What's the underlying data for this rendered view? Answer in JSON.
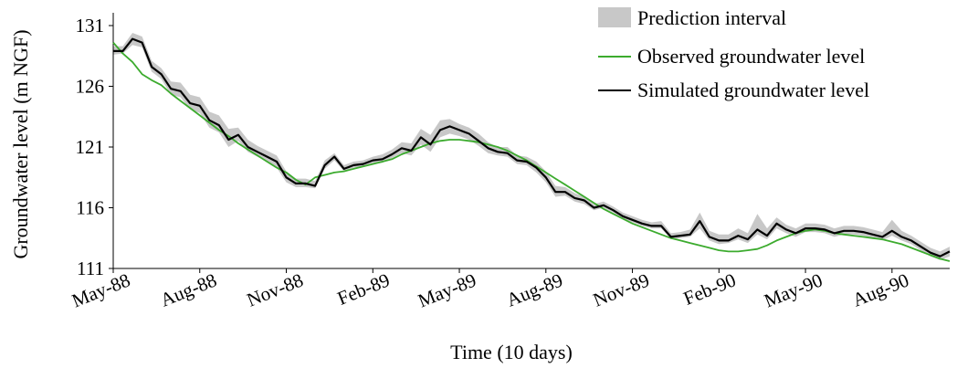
{
  "chart_data": {
    "type": "line",
    "xlabel": "Time (10 days)",
    "ylabel": "Groundwater level (m NGF)",
    "ylim": [
      111,
      131
    ],
    "yticks": [
      111,
      116,
      121,
      126,
      131
    ],
    "xticks": [
      "May-88",
      "Aug-88",
      "Nov-88",
      "Feb-89",
      "May-89",
      "Aug-89",
      "Nov-89",
      "Feb-90",
      "May-90",
      "Aug-90"
    ],
    "xtick_index": [
      0,
      9,
      18,
      27,
      36,
      45,
      54,
      63,
      72,
      81
    ],
    "legend_position": "top-right",
    "grid": false,
    "colors": {
      "band": "#c8c8c8",
      "observed": "#3cab2e",
      "simulated": "#000000"
    },
    "series": [
      {
        "name": "Observed groundwater level",
        "values": [
          129.6,
          128.7,
          128.0,
          127.0,
          126.5,
          126.1,
          125.4,
          124.8,
          124.2,
          123.6,
          123.0,
          122.4,
          121.9,
          121.3,
          120.8,
          120.3,
          119.8,
          119.3,
          118.9,
          118.3,
          117.9,
          118.5,
          118.7,
          118.9,
          119.0,
          119.2,
          119.4,
          119.6,
          119.8,
          120.0,
          120.4,
          120.7,
          121.0,
          121.3,
          121.5,
          121.6,
          121.6,
          121.5,
          121.4,
          121.2,
          121.0,
          120.7,
          120.3,
          119.9,
          119.4,
          118.9,
          118.4,
          117.9,
          117.4,
          116.9,
          116.4,
          115.9,
          115.5,
          115.1,
          114.7,
          114.4,
          114.1,
          113.8,
          113.5,
          113.3,
          113.1,
          112.9,
          112.7,
          112.5,
          112.4,
          112.4,
          112.5,
          112.6,
          112.9,
          113.3,
          113.6,
          113.9,
          114.1,
          114.2,
          114.1,
          113.9,
          113.8,
          113.7,
          113.6,
          113.5,
          113.4,
          113.2,
          113.0,
          112.7,
          112.4,
          112.1,
          111.8,
          111.6
        ]
      },
      {
        "name": "Simulated groundwater level",
        "values": [
          128.9,
          128.9,
          129.9,
          129.6,
          127.6,
          127.0,
          125.8,
          125.6,
          124.6,
          124.4,
          123.2,
          122.8,
          121.6,
          122.0,
          121.0,
          120.6,
          120.2,
          119.8,
          118.5,
          118.0,
          118.0,
          117.8,
          119.5,
          120.2,
          119.2,
          119.5,
          119.6,
          119.9,
          120.0,
          120.4,
          120.9,
          120.7,
          121.8,
          121.2,
          122.4,
          122.7,
          122.4,
          122.1,
          121.5,
          120.9,
          120.6,
          120.5,
          119.9,
          119.8,
          119.3,
          118.5,
          117.3,
          117.3,
          116.8,
          116.6,
          116.0,
          116.2,
          115.8,
          115.3,
          115.0,
          114.7,
          114.5,
          114.5,
          113.6,
          113.7,
          113.8,
          114.9,
          113.6,
          113.3,
          113.3,
          113.7,
          113.4,
          114.2,
          113.7,
          114.7,
          114.2,
          113.9,
          114.3,
          114.3,
          114.2,
          113.9,
          114.1,
          114.1,
          114.0,
          113.8,
          113.6,
          114.1,
          113.6,
          113.3,
          112.8,
          112.3,
          112.0,
          112.4
        ]
      }
    ],
    "band": {
      "name": "Prediction interval",
      "lower": [
        128.6,
        128.7,
        129.4,
        129.2,
        127.2,
        126.6,
        125.3,
        125.1,
        124.1,
        123.8,
        122.6,
        122.2,
        121.0,
        121.5,
        120.6,
        120.2,
        119.8,
        119.3,
        118.1,
        117.7,
        117.7,
        117.6,
        119.2,
        119.9,
        119.0,
        119.3,
        119.4,
        119.6,
        119.7,
        120.1,
        120.5,
        120.3,
        121.2,
        120.6,
        121.8,
        122.1,
        121.9,
        121.6,
        121.1,
        120.5,
        120.3,
        120.2,
        119.6,
        119.5,
        118.9,
        118.1,
        116.9,
        117.0,
        116.5,
        116.3,
        115.8,
        116.0,
        115.6,
        115.1,
        114.8,
        114.5,
        114.3,
        114.3,
        113.4,
        113.5,
        113.6,
        114.3,
        113.3,
        113.0,
        113.1,
        113.4,
        113.1,
        113.8,
        113.4,
        114.3,
        113.9,
        113.6,
        114.0,
        114.0,
        113.9,
        113.6,
        113.8,
        113.8,
        113.7,
        113.5,
        113.3,
        113.7,
        113.3,
        113.0,
        112.5,
        112.0,
        111.7,
        112.0
      ],
      "upper": [
        129.3,
        129.3,
        130.4,
        130.1,
        128.1,
        127.5,
        126.4,
        126.3,
        125.3,
        125.1,
        123.9,
        123.6,
        122.5,
        122.6,
        121.6,
        121.1,
        120.7,
        120.3,
        119.0,
        118.4,
        118.4,
        118.2,
        119.9,
        120.5,
        119.5,
        119.8,
        119.9,
        120.2,
        120.4,
        120.8,
        121.4,
        121.3,
        122.5,
        122.0,
        123.2,
        123.3,
        122.9,
        122.6,
        122.1,
        121.4,
        121.0,
        121.0,
        120.3,
        120.2,
        119.8,
        119.0,
        117.8,
        117.7,
        117.2,
        116.9,
        116.3,
        116.5,
        116.1,
        115.6,
        115.3,
        115.0,
        114.8,
        114.9,
        113.9,
        114.0,
        114.2,
        115.6,
        114.1,
        113.8,
        113.8,
        114.3,
        113.9,
        115.5,
        114.3,
        115.2,
        114.6,
        114.3,
        114.7,
        114.7,
        114.6,
        114.3,
        114.5,
        114.5,
        114.4,
        114.2,
        114.0,
        115.0,
        114.1,
        113.7,
        113.2,
        112.7,
        112.4,
        112.8
      ]
    }
  }
}
